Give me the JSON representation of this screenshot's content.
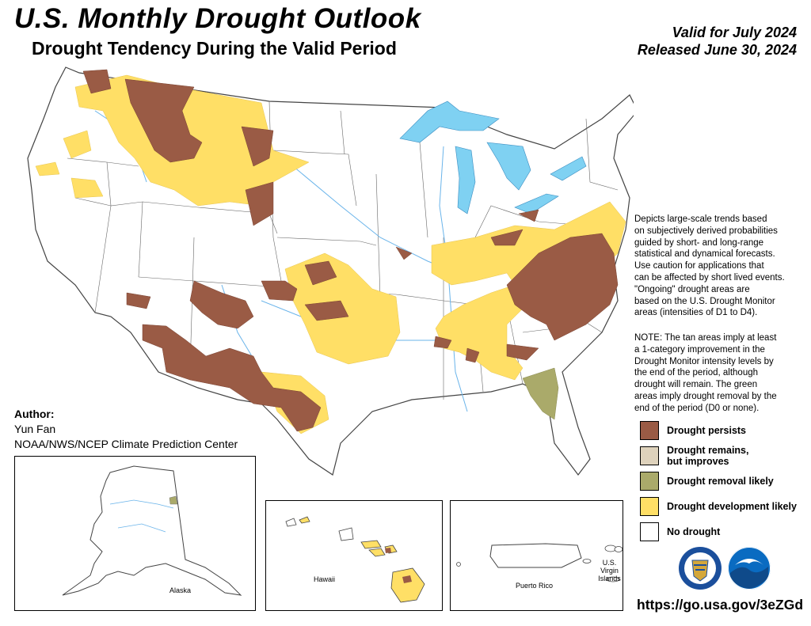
{
  "header": {
    "title": "U.S. Monthly Drought Outlook",
    "subtitle": "Drought Tendency During the Valid Period",
    "valid": "Valid for July 2024",
    "released": "Released June 30, 2024"
  },
  "description": {
    "line1": "Depicts large-scale trends based",
    "line2": "on subjectively derived probabilities",
    "line3": "guided by short- and long-range",
    "line4": "statistical and dynamical forecasts.",
    "line5": "Use caution for applications that",
    "line6": "can be affected by short lived events.",
    "line7": "\"Ongoing\" drought areas are",
    "line8": "based on the U.S. Drought Monitor",
    "line9": "areas (intensities of D1 to D4)."
  },
  "note": {
    "line1": "NOTE: The tan areas imply at least",
    "line2": "a 1-category improvement in the",
    "line3": "Drought Monitor intensity levels by",
    "line4": "the end of the period, although",
    "line5": "drought will remain. The green",
    "line6": "areas imply drought removal by the",
    "line7": "end of the period (D0 or none)."
  },
  "legend": {
    "persists": {
      "label": "Drought persists",
      "color": "#9a5b45"
    },
    "improves": {
      "label1": "Drought remains,",
      "label2": "but improves",
      "color": "#ded2bc"
    },
    "removal": {
      "label": "Drought removal likely",
      "color": "#aaaa6a"
    },
    "development": {
      "label": "Drought development likely",
      "color": "#ffdf66"
    },
    "none": {
      "label": "No drought",
      "color": "#ffffff"
    }
  },
  "author": {
    "heading": "Author:",
    "name": "Yun Fan",
    "org": "NOAA/NWS/NCEP Climate Prediction Center"
  },
  "insets": {
    "alaska": "Alaska",
    "hawaii": "Hawaii",
    "puerto_rico": "Puerto Rico",
    "virgin_islands_1": "U.S. Virgin",
    "virgin_islands_2": "Islands"
  },
  "url": "https://go.usa.gov/3eZGd",
  "colors": {
    "water": "#7fd1f2",
    "border": "#555555",
    "river": "#6ab4ea"
  }
}
